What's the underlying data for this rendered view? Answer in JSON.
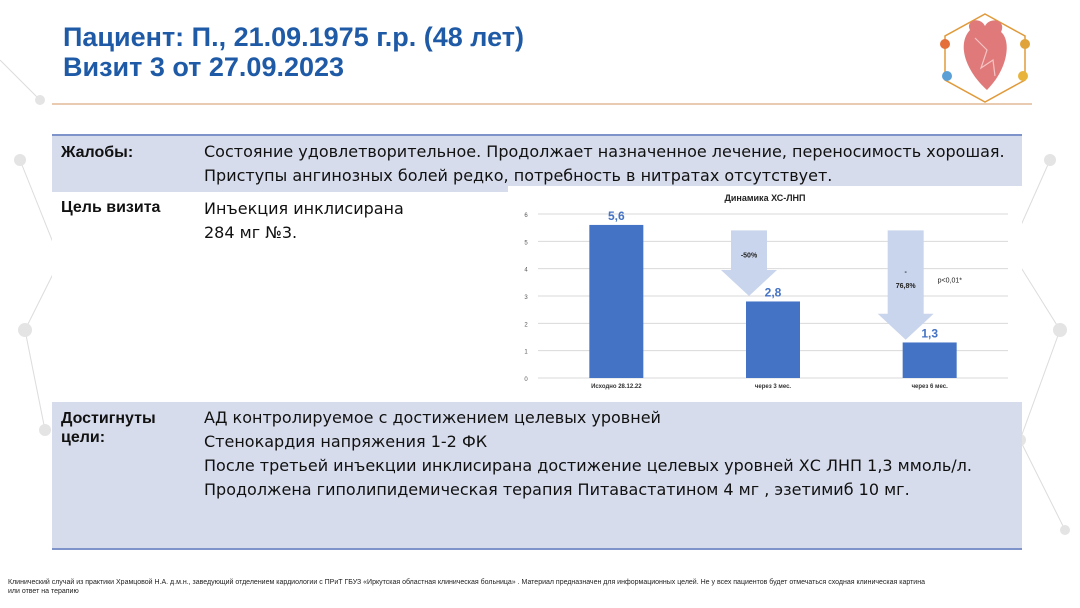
{
  "header": {
    "title_line1": "Пациент: П., 21.09.1975 г.р. (48 лет)",
    "title_line2": "Визит 3 от 27.09.2023"
  },
  "colors": {
    "title": "#1f5aa6",
    "table_band": "#d6dcec",
    "table_border": "#7d93c9",
    "bar": "#4472c4",
    "arrow": "#c9d5ec",
    "divider": "#e8cbb1"
  },
  "table": {
    "complaints_label": "Жалобы:",
    "complaints_lines": [
      "Состояние удовлетворительное. Продолжает назначенное лечение, переносимость хорошая.",
      "Приступы ангинозных болей редко, потребность в нитратах отсутствует."
    ],
    "goal_label": "Цель визита",
    "goal_lines": [
      "Инъекция инклисирана",
      "284 мг №3."
    ],
    "achieved_label_line1": "Достигнуты",
    "achieved_label_line2": "цели:",
    "achieved_lines": [
      "АД контролируемое  с достижением целевых уровней",
      "Стенокардия напряжения 1-2 ФК",
      "После третьей инъекции инклисирана  достижение целевых уровней ХС ЛНП 1,3 ммоль/л.",
      "Продолжена гиполипидемическая терапия Питавастатином 4 мг , эзетимиб 10 мг."
    ]
  },
  "chart_data": {
    "type": "bar",
    "title": "Динамика ХС-ЛНП",
    "categories": [
      "Исходно 28.12.22",
      "через 3 мес.",
      "через 6 мес."
    ],
    "values": [
      5.6,
      2.8,
      1.3
    ],
    "value_labels": [
      "5,6",
      "2,8",
      "1,3"
    ],
    "ylim": [
      0,
      6
    ],
    "yticks": [
      "0",
      "1",
      "2",
      "3",
      "4",
      "5",
      "6"
    ],
    "grid": true,
    "annotations": {
      "arrow1_label": "-50%",
      "arrow2_label_line1": "-",
      "arrow2_label_line2": "76,8%",
      "pvalue": "p<0,01*"
    }
  },
  "footer": {
    "line1": "Клинический случай из практики Храмцовой Н.А. д.м.н., заведующий отделением кардиологии с ПРиТ ГБУЗ «Иркутская областная клиническая больница» . Материал предназначен для информационных целей. Не у всех пациентов будет отмечаться сходная клиническая картина",
    "line2": "или ответ на терапию"
  }
}
